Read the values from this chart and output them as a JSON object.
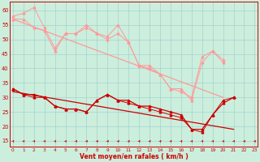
{
  "background_color": "#cceedd",
  "grid_color": "#99cccc",
  "xlabel": "Vent moyen/en rafales ( km/h )",
  "ylim": [
    13,
    63
  ],
  "xlim": [
    -0.3,
    23.3
  ],
  "yticks": [
    15,
    20,
    25,
    30,
    35,
    40,
    45,
    50,
    55,
    60
  ],
  "xticks": [
    0,
    1,
    2,
    3,
    4,
    5,
    6,
    7,
    8,
    9,
    10,
    11,
    12,
    13,
    14,
    15,
    16,
    17,
    18,
    19,
    20,
    21,
    22,
    23
  ],
  "pink": "#ff9999",
  "red": "#cc0000",
  "rafale_spiky": [
    58,
    59,
    61,
    54,
    47,
    52,
    52,
    55,
    52,
    51,
    55,
    49,
    41,
    41,
    38,
    33,
    33,
    29,
    42,
    46,
    43
  ],
  "rafale_spiky2": [
    57,
    57,
    54,
    53,
    46,
    52,
    52,
    54,
    52,
    50,
    52,
    49,
    41,
    40,
    38,
    33,
    32,
    30,
    44,
    46,
    42
  ],
  "rafale_trend_x": [
    0,
    20
  ],
  "rafale_trend_y": [
    57,
    30
  ],
  "vent_spiky": [
    33,
    31,
    31,
    30,
    27,
    26,
    26,
    25,
    29,
    31,
    29,
    29,
    27,
    27,
    26,
    25,
    24,
    19,
    19,
    24,
    28,
    30
  ],
  "vent_trend_x": [
    0,
    21
  ],
  "vent_trend_y": [
    32,
    19
  ],
  "vent_spiky2": [
    33,
    31,
    30,
    30,
    27,
    26,
    26,
    25,
    29,
    31,
    29,
    28,
    27,
    26,
    25,
    24,
    23,
    19,
    18,
    24,
    29,
    30
  ],
  "arrows_x": [
    0,
    1,
    2,
    3,
    4,
    5,
    6,
    7,
    8,
    9,
    10,
    11,
    12,
    13,
    14,
    15,
    16,
    17,
    18,
    19,
    20,
    21,
    22,
    23
  ]
}
